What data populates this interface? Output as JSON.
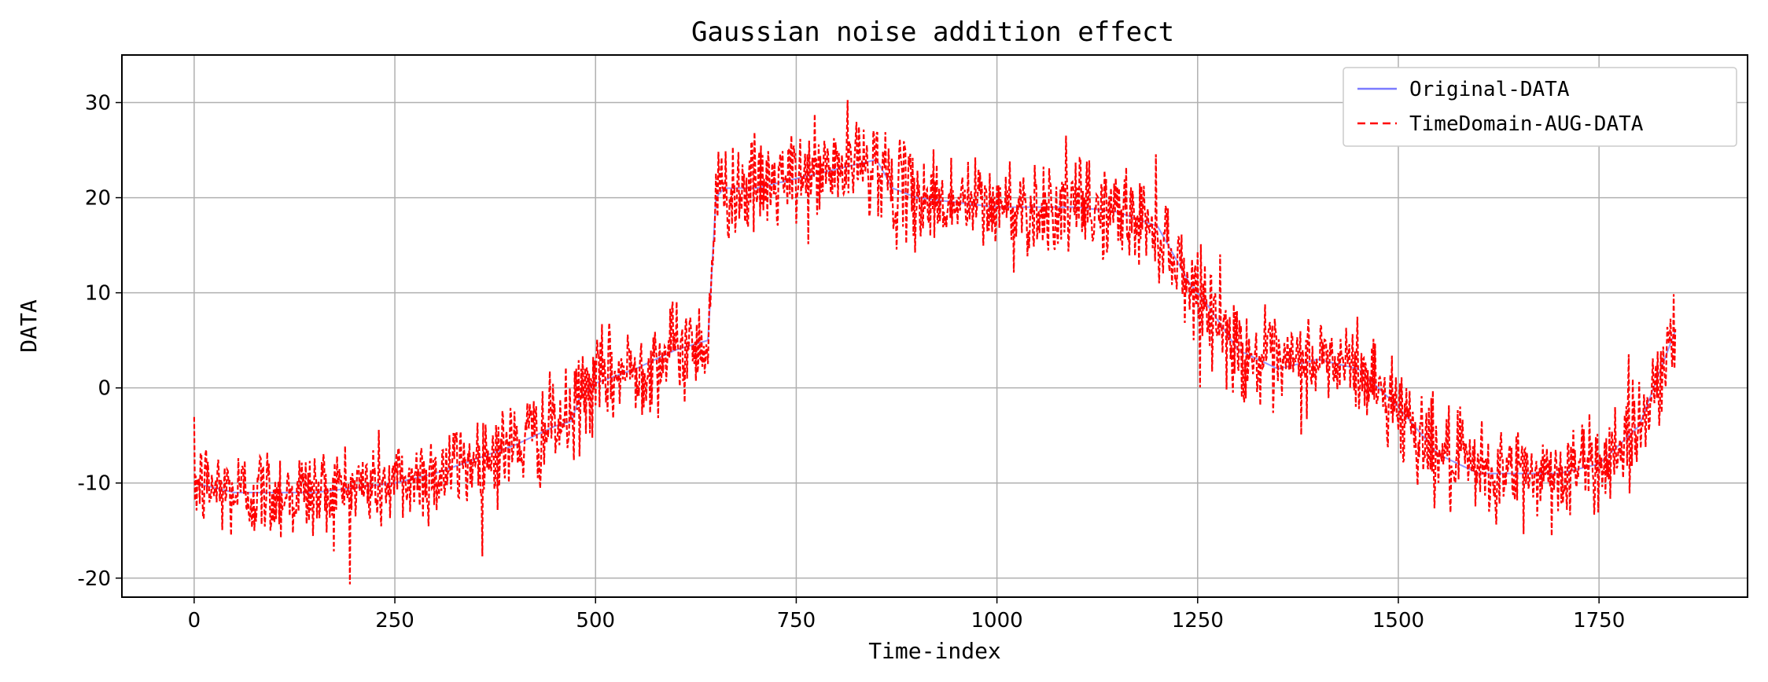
{
  "chart_data": {
    "type": "line",
    "title": "Gaussian noise addition effect",
    "xlabel": "Time-index",
    "ylabel": "DATA",
    "xlim": [
      -90,
      1935
    ],
    "ylim": [
      -22,
      35
    ],
    "xticks": [
      0,
      250,
      500,
      750,
      1000,
      1250,
      1500,
      1750
    ],
    "yticks": [
      -20,
      -10,
      0,
      10,
      20,
      30
    ],
    "xtick_labels": [
      "0",
      "250",
      "500",
      "750",
      "1000",
      "1250",
      "1500",
      "1750"
    ],
    "ytick_labels": [
      "-20",
      "-10",
      "0",
      "10",
      "20",
      "30"
    ],
    "grid": true,
    "legend_position": "top-right",
    "series": [
      {
        "name": "Original-DATA",
        "color": "#7b7bff",
        "style": "solid",
        "x": [
          0,
          50,
          100,
          150,
          200,
          250,
          300,
          350,
          400,
          450,
          470,
          480,
          500,
          550,
          600,
          640,
          650,
          660,
          700,
          750,
          800,
          850,
          870,
          900,
          950,
          1000,
          1050,
          1100,
          1150,
          1200,
          1240,
          1260,
          1300,
          1350,
          1400,
          1450,
          1500,
          1550,
          1600,
          1650,
          1700,
          1750,
          1800,
          1845
        ],
        "values": [
          -10,
          -11,
          -11,
          -11,
          -10.5,
          -10,
          -9,
          -7.5,
          -6,
          -4,
          -3.5,
          -1,
          0.5,
          2,
          4,
          5,
          20,
          21,
          21,
          22,
          23,
          24,
          21,
          20,
          19.5,
          19,
          19,
          19,
          18.5,
          17,
          11,
          9,
          4,
          2,
          3,
          2,
          -2,
          -7,
          -9,
          -9,
          -9,
          -8,
          -4,
          6
        ]
      },
      {
        "name": "TimeDomain-AUG-DATA",
        "color": "#ff0000",
        "style": "dashed",
        "x": [
          0,
          50,
          100,
          150,
          200,
          250,
          300,
          350,
          400,
          450,
          470,
          480,
          500,
          550,
          600,
          640,
          650,
          660,
          700,
          750,
          800,
          850,
          870,
          900,
          950,
          1000,
          1050,
          1100,
          1150,
          1200,
          1240,
          1260,
          1300,
          1350,
          1400,
          1450,
          1500,
          1550,
          1600,
          1650,
          1700,
          1750,
          1800,
          1845
        ],
        "values": [
          -10,
          -11,
          -11,
          -11,
          -10.5,
          -10,
          -9,
          -7.5,
          -6,
          -4,
          -3.5,
          -1,
          0.5,
          2,
          4,
          5,
          20,
          21,
          21,
          22,
          23,
          24,
          21,
          20,
          19.5,
          19,
          19,
          19,
          18.5,
          17,
          11,
          9,
          4,
          2,
          3,
          2,
          -2,
          -7,
          -9,
          -9,
          -9,
          -8,
          -4,
          6
        ],
        "noise_std": 2.5
      }
    ]
  }
}
